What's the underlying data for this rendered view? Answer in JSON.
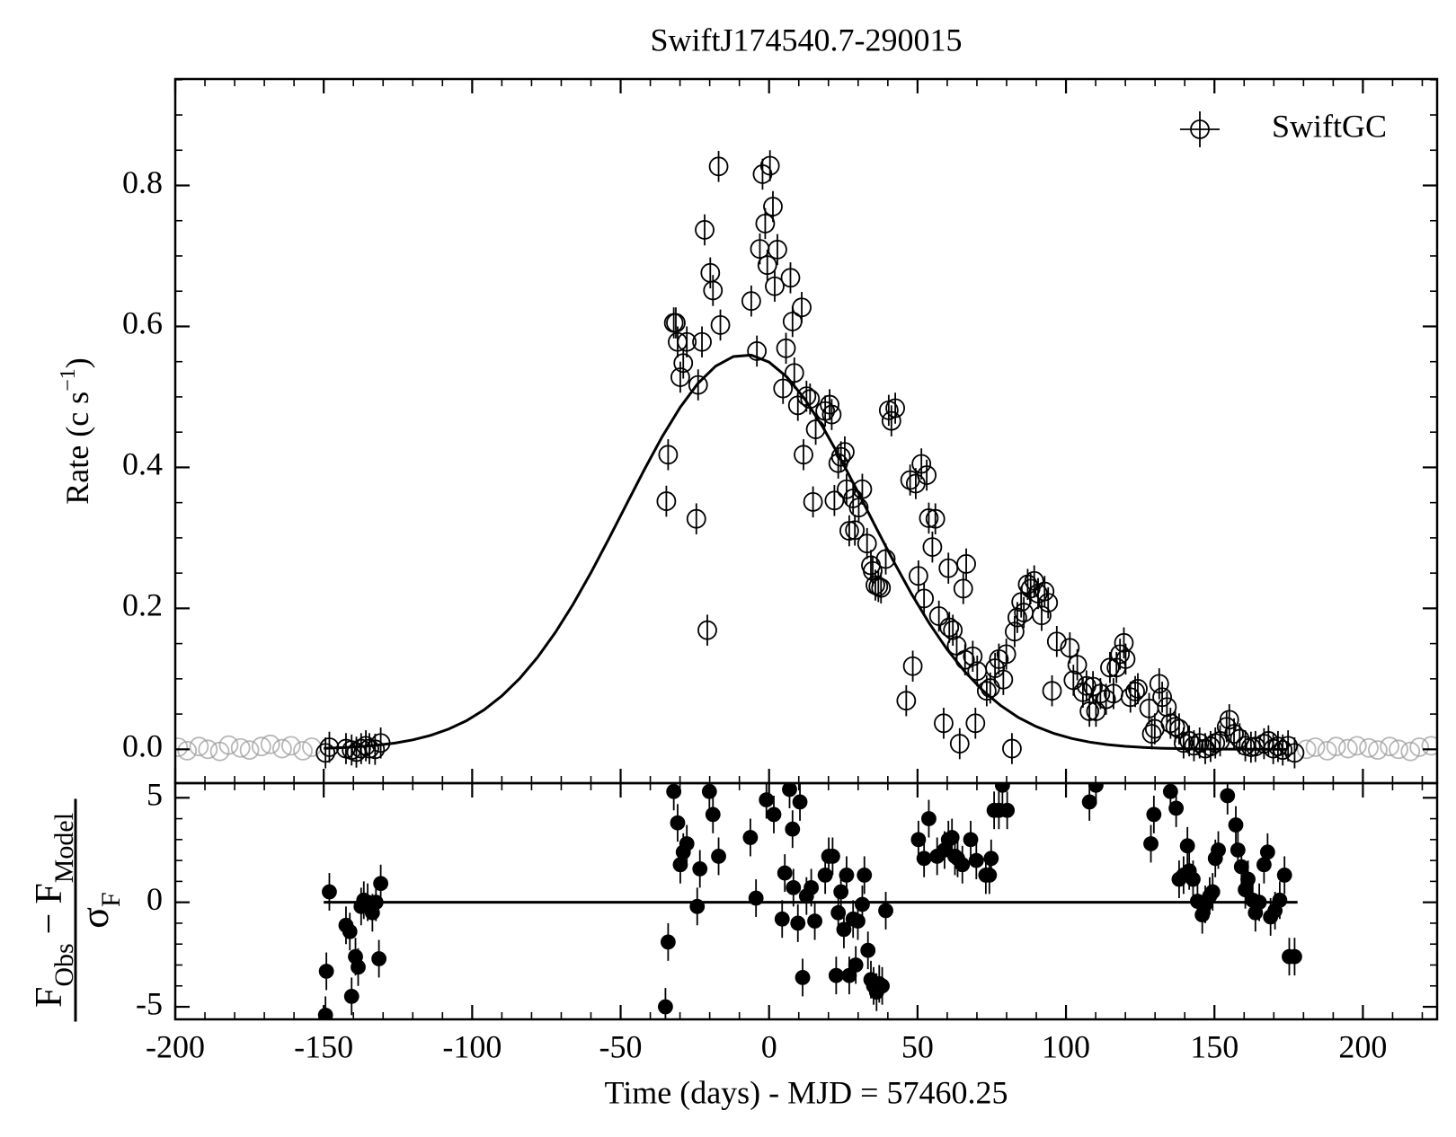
{
  "chart_data": [
    {
      "type": "scatter",
      "title": "SwiftJ174540.7-290015",
      "ylabel": {
        "text": "Rate (c s",
        "superscript": "−1",
        "end": ")"
      },
      "xlim": [
        -200,
        225
      ],
      "xticks": [
        -200,
        -150,
        -100,
        -50,
        0,
        50,
        100,
        150,
        200
      ],
      "xminor": 10,
      "ylim": [
        -0.048,
        0.951
      ],
      "yticks": [
        {
          "value": 0,
          "label": "0.0"
        },
        0.2,
        0.4,
        0.6,
        0.8
      ],
      "yminor": 0.05,
      "legend": "upper right",
      "series": [
        {
          "name": "SwiftGC",
          "color": "#000000",
          "marker": "open",
          "error": 0.022,
          "x": [
            -149.4,
            -148.1,
            -142.5,
            -140.6,
            -139.0,
            -137.4,
            -135.8,
            -134.6,
            -132.7,
            -130.8,
            -34.6,
            -34.0,
            -32.1,
            -31.4,
            -30.8,
            -29.9,
            -28.9,
            -27.7,
            -24.5,
            -23.9,
            -22.6,
            -21.7,
            -20.8,
            -19.8,
            -18.9,
            -17.0,
            -16.4,
            -6.0,
            -4.1,
            -3.1,
            -2.2,
            -1.3,
            -0.6,
            0.3,
            1.3,
            1.9,
            2.8,
            4.7,
            5.7,
            7.2,
            7.9,
            8.5,
            9.7,
            11.0,
            11.6,
            12.6,
            13.8,
            14.8,
            15.7,
            18.9,
            20.4,
            21.1,
            22.0,
            23.3,
            24.2,
            25.5,
            26.1,
            27.0,
            28.3,
            28.9,
            30.2,
            31.4,
            33.0,
            34.3,
            34.9,
            35.8,
            36.8,
            37.7,
            39.3,
            40.3,
            41.2,
            42.5,
            46.2,
            47.5,
            48.4,
            49.4,
            50.3,
            51.3,
            52.2,
            53.1,
            53.8,
            55.0,
            56.0,
            57.2,
            58.8,
            60.4,
            60.7,
            61.9,
            63.2,
            64.2,
            65.4,
            66.0,
            66.4,
            68.6,
            69.5,
            70.1,
            73.3,
            74.5,
            76.1,
            77.4,
            78.9,
            79.9,
            81.8,
            82.7,
            83.6,
            84.9,
            85.8,
            87.1,
            88.1,
            89.3,
            90.6,
            91.8,
            92.8,
            94.0,
            95.3,
            96.9,
            101.3,
            102.5,
            103.8,
            105.7,
            106.9,
            107.9,
            109.1,
            110.1,
            111.6,
            113.5,
            114.8,
            116.0,
            117.0,
            118.2,
            119.5,
            120.1,
            121.7,
            123.3,
            124.2,
            128.0,
            128.9,
            129.9,
            131.4,
            132.4,
            134.0,
            135.2,
            136.8,
            138.1,
            139.6,
            141.5,
            143.1,
            145.0,
            146.9,
            148.7,
            150.3,
            151.9,
            154.1,
            155.0,
            156.6,
            158.5,
            160.4,
            162.3,
            163.8,
            166.7,
            168.2,
            169.8,
            171.4,
            173.0,
            174.8,
            177.0
          ],
          "values": [
            -0.005,
            0.003,
            0.001,
            -0.001,
            -0.004,
            0.001,
            0.005,
            0.001,
            0.0,
            0.009,
            0.352,
            0.418,
            0.605,
            0.605,
            0.578,
            0.528,
            0.548,
            0.578,
            0.327,
            0.517,
            0.578,
            0.737,
            0.169,
            0.676,
            0.651,
            0.827,
            0.602,
            0.636,
            0.565,
            0.71,
            0.816,
            0.746,
            0.687,
            0.828,
            0.77,
            0.657,
            0.709,
            0.512,
            0.569,
            0.669,
            0.607,
            0.534,
            0.488,
            0.627,
            0.418,
            0.501,
            0.497,
            0.351,
            0.454,
            0.48,
            0.489,
            0.475,
            0.353,
            0.406,
            0.415,
            0.422,
            0.369,
            0.31,
            0.356,
            0.311,
            0.343,
            0.369,
            0.292,
            0.261,
            0.253,
            0.233,
            0.231,
            0.229,
            0.27,
            0.481,
            0.466,
            0.484,
            0.069,
            0.382,
            0.118,
            0.377,
            0.246,
            0.405,
            0.214,
            0.389,
            0.328,
            0.287,
            0.327,
            0.189,
            0.037,
            0.257,
            0.173,
            0.169,
            0.147,
            0.008,
            0.228,
            0.127,
            0.263,
            0.132,
            0.037,
            0.111,
            0.083,
            0.087,
            0.115,
            0.128,
            0.099,
            0.135,
            0.001,
            0.167,
            0.187,
            0.209,
            0.194,
            0.234,
            0.228,
            0.239,
            0.221,
            0.19,
            0.224,
            0.208,
            0.083,
            0.153,
            0.144,
            0.098,
            0.12,
            0.081,
            0.09,
            0.054,
            0.089,
            0.054,
            0.079,
            0.071,
            0.116,
            0.079,
            0.116,
            0.135,
            0.151,
            0.128,
            0.074,
            0.082,
            0.086,
            0.058,
            0.022,
            0.029,
            0.093,
            0.074,
            0.06,
            0.037,
            0.032,
            0.029,
            0.009,
            0.012,
            0.005,
            0.009,
            0.001,
            0.004,
            0.009,
            0.012,
            0.032,
            0.042,
            0.022,
            0.015,
            0.005,
            0.003,
            0.004,
            0.008,
            0.012,
            0.001,
            0.004,
            -0.001,
            0.005,
            -0.005
          ]
        }
      ],
      "excluded": {
        "color": "#999999",
        "x": [
          -199,
          -196,
          -192,
          -189,
          -185,
          -182,
          -178,
          -175,
          -171,
          -168,
          -164,
          -161,
          -157,
          -154,
          181,
          184,
          188,
          191,
          195,
          198,
          202,
          205,
          209,
          212,
          216,
          219,
          223
        ],
        "values": [
          0.003,
          -0.002,
          0.004,
          0.0,
          -0.003,
          0.006,
          0.002,
          -0.001,
          0.004,
          0.007,
          0.001,
          0.005,
          -0.002,
          0.003,
          0.0,
          0.003,
          -0.002,
          0.004,
          0.001,
          0.005,
          0.002,
          -0.001,
          0.004,
          0.0,
          -0.003,
          0.003,
          0.005
        ]
      },
      "model": {
        "color": "#000000",
        "x": [
          -150,
          -144,
          -138,
          -132,
          -126,
          -120,
          -114,
          -108,
          -102,
          -96,
          -90,
          -84,
          -78,
          -72,
          -66,
          -60,
          -54,
          -48,
          -42,
          -36,
          -30,
          -24,
          -18,
          -12,
          -6,
          0,
          6,
          12,
          18,
          24,
          30,
          36,
          42,
          48,
          54,
          60,
          66,
          72,
          78,
          84,
          90,
          96,
          102,
          108,
          114,
          120,
          126,
          132,
          138,
          144,
          150,
          156,
          162,
          168,
          174
        ],
        "values": [
          0.0014,
          0.0023,
          0.0037,
          0.0058,
          0.0089,
          0.0134,
          0.0198,
          0.0286,
          0.0404,
          0.056,
          0.0758,
          0.1005,
          0.1304,
          0.1657,
          0.2059,
          0.2506,
          0.2985,
          0.3479,
          0.397,
          0.4436,
          0.4849,
          0.519,
          0.5436,
          0.5573,
          0.5593,
          0.5494,
          0.5283,
          0.4972,
          0.458,
          0.4129,
          0.3644,
          0.3148,
          0.2662,
          0.2203,
          0.1785,
          0.1415,
          0.1099,
          0.0834,
          0.0621,
          0.0451,
          0.0322,
          0.0224,
          0.0153,
          0.0102,
          0.0067,
          0.0043,
          0.0027,
          0.0016,
          0.001,
          0.0006,
          0.0003,
          0.0002,
          0.0001,
          0.0001,
          0.0
        ]
      }
    },
    {
      "type": "scatter",
      "xlabel": "Time (days) - MJD = 57460.25",
      "ylabel": {
        "numerator": [
          "F",
          "Obs",
          "−",
          "F",
          "Model"
        ],
        "denominator": [
          "σ",
          "F"
        ]
      },
      "xlim": [
        -200,
        225
      ],
      "xticks": [
        -200,
        -150,
        -100,
        -50,
        0,
        50,
        100,
        150,
        200
      ],
      "xminor": 10,
      "ylim": [
        -5.6,
        5.7
      ],
      "yticks": [
        -5,
        0,
        5
      ],
      "yminor": 1,
      "series": [
        {
          "color": "#000000",
          "marker": "filled",
          "error": 0.9,
          "x": [
            -149.4,
            -149.1,
            -148.1,
            -142.5,
            -141.2,
            -140.6,
            -139.3,
            -138.4,
            -137.4,
            -136.5,
            -135.2,
            -133.6,
            -132.4,
            -131.4,
            -130.8,
            -34.9,
            -34.0,
            -32.1,
            -30.8,
            -29.9,
            -28.9,
            -27.7,
            -24.2,
            -23.3,
            -20.1,
            -18.9,
            -17.0,
            -6.3,
            -4.4,
            -0.9,
            1.6,
            4.4,
            5.3,
            6.9,
            7.9,
            8.2,
            9.7,
            10.4,
            11.3,
            12.6,
            14.2,
            15.4,
            18.9,
            20.1,
            21.4,
            22.6,
            23.3,
            24.2,
            25.2,
            26.1,
            27.0,
            28.3,
            29.2,
            29.9,
            31.4,
            32.1,
            33.3,
            34.3,
            35.2,
            36.2,
            37.1,
            38.1,
            39.3,
            50.3,
            52.2,
            53.8,
            56.6,
            59.1,
            60.4,
            61.6,
            62.6,
            63.5,
            65.1,
            67.9,
            69.8,
            73.0,
            74.2,
            74.8,
            75.8,
            77.4,
            78.6,
            80.2,
            107.9,
            110.1,
            128.6,
            129.6,
            135.2,
            137.1,
            138.1,
            139.6,
            140.9,
            141.5,
            142.8,
            144.3,
            145.9,
            146.9,
            148.4,
            149.4,
            150.3,
            151.3,
            154.4,
            157.2,
            157.9,
            159.1,
            160.4,
            161.3,
            162.9,
            163.8,
            165.1,
            166.7,
            167.9,
            168.9,
            170.4,
            172.0,
            173.6,
            175.2,
            177.0
          ],
          "values": [
            -5.4,
            -3.3,
            0.5,
            -1.1,
            -1.4,
            -4.5,
            -2.6,
            -3.1,
            -0.2,
            0.1,
            0.0,
            -0.5,
            0.0,
            -2.7,
            0.9,
            -5.0,
            -1.9,
            5.3,
            3.8,
            1.8,
            2.4,
            2.8,
            -0.2,
            1.6,
            5.3,
            4.2,
            2.2,
            3.1,
            0.2,
            4.9,
            4.2,
            -0.8,
            1.4,
            5.4,
            3.5,
            0.7,
            -1.0,
            4.8,
            -3.6,
            0.3,
            0.7,
            -0.9,
            1.3,
            2.2,
            2.2,
            -3.5,
            -0.5,
            0.5,
            -1.3,
            1.3,
            -3.5,
            -0.8,
            -3.0,
            -0.9,
            -0.1,
            1.3,
            -2.3,
            -3.7,
            -4.0,
            -4.3,
            -3.9,
            -4.0,
            -0.4,
            3.0,
            2.1,
            4.0,
            2.2,
            2.5,
            3.0,
            3.1,
            2.2,
            2.1,
            1.8,
            3.0,
            2.0,
            1.3,
            1.3,
            2.1,
            4.4,
            4.4,
            5.6,
            4.4,
            4.8,
            5.6,
            2.8,
            4.2,
            5.3,
            4.5,
            1.1,
            1.3,
            2.7,
            1.5,
            1.1,
            0.05,
            -0.6,
            -0.1,
            0.3,
            0.5,
            2.1,
            2.5,
            5.1,
            3.7,
            2.5,
            1.7,
            0.6,
            1.1,
            0.1,
            -0.5,
            0.0,
            1.8,
            2.4,
            -0.7,
            -0.4,
            0.1,
            1.3,
            -2.6,
            -2.6
          ]
        }
      ],
      "zero_line": {
        "color": "#000000",
        "x": [
          -150,
          178
        ],
        "values": [
          0,
          0
        ]
      }
    }
  ]
}
